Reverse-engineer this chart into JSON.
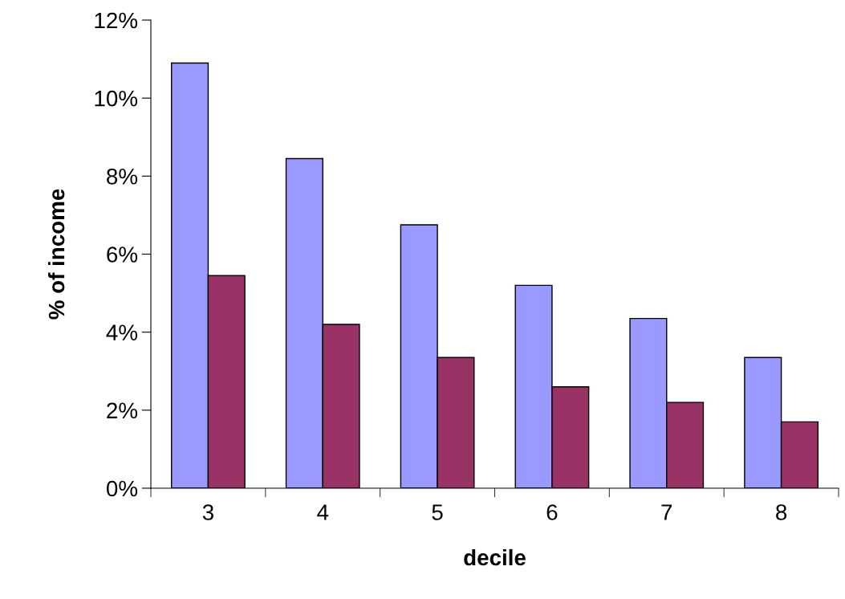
{
  "chart_data": {
    "type": "bar",
    "xlabel": "decile",
    "ylabel": "% of income",
    "categories": [
      "3",
      "4",
      "5",
      "6",
      "7",
      "8"
    ],
    "series": [
      {
        "color": "#9999ff",
        "values": [
          10.9,
          8.45,
          6.75,
          5.2,
          4.35,
          3.35
        ]
      },
      {
        "color": "#993366",
        "values": [
          5.45,
          4.2,
          3.35,
          2.6,
          2.2,
          1.7
        ]
      }
    ],
    "ylim": [
      0,
      12
    ],
    "yticks": [
      {
        "value": 0,
        "label": "0%"
      },
      {
        "value": 2,
        "label": "2%"
      },
      {
        "value": 4,
        "label": "4%"
      },
      {
        "value": 6,
        "label": "6%"
      },
      {
        "value": 8,
        "label": "8%"
      },
      {
        "value": 10,
        "label": "10%"
      },
      {
        "value": 12,
        "label": "12%"
      }
    ],
    "grid": false
  }
}
